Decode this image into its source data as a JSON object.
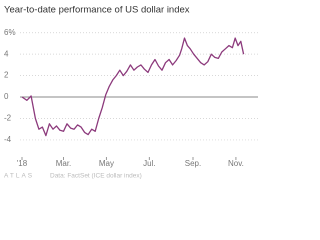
{
  "chart_data": {
    "type": "line",
    "title": "Year-to-date performance of US dollar index",
    "source": "Data: FactSet (ICE dollar index)",
    "brand": "ATLAS",
    "x": [
      1,
      8,
      14,
      20,
      25,
      30,
      35,
      40,
      45,
      50,
      55,
      60,
      65,
      70,
      75,
      80,
      85,
      90,
      95,
      100,
      105,
      110,
      115,
      120,
      125,
      130,
      135,
      140,
      145,
      150,
      155,
      160,
      165,
      170,
      175,
      180,
      185,
      190,
      195,
      200,
      205,
      210,
      215,
      220,
      225,
      228,
      232,
      236,
      240,
      245,
      250,
      255,
      260,
      265,
      270,
      275,
      280,
      285,
      290,
      295,
      300,
      304,
      308,
      312,
      316
    ],
    "series": [
      {
        "name": "US dollar index",
        "color": "#8c3a7c",
        "values": [
          0,
          -0.3,
          0.1,
          -2,
          -3,
          -2.8,
          -3.6,
          -2.5,
          -3,
          -2.7,
          -3.1,
          -3.2,
          -2.5,
          -2.9,
          -3,
          -2.6,
          -2.8,
          -3.3,
          -3.5,
          -3,
          -3.2,
          -2,
          -1,
          0.2,
          1,
          1.6,
          2,
          2.5,
          2,
          2.4,
          3,
          2.5,
          2.8,
          3,
          2.6,
          2.3,
          3,
          3.5,
          2.9,
          2.5,
          3.2,
          3.5,
          3,
          3.4,
          3.9,
          4.5,
          5.5,
          4.8,
          4.5,
          4,
          3.6,
          3.2,
          3,
          3.3,
          4,
          3.7,
          3.6,
          4.2,
          4.5,
          4.8,
          4.6,
          5.5,
          4.8,
          5.2,
          4
        ]
      }
    ],
    "xlim": [
      1,
      330
    ],
    "xticks": [
      {
        "value": 1,
        "label": "'18"
      },
      {
        "value": 60,
        "label": "Mar."
      },
      {
        "value": 121,
        "label": "May"
      },
      {
        "value": 182,
        "label": "Jul."
      },
      {
        "value": 244,
        "label": "Sep."
      },
      {
        "value": 305,
        "label": "Nov."
      }
    ],
    "ylim": [
      -5.5,
      7
    ],
    "yticks": [
      {
        "value": 6,
        "label": "6%"
      },
      4,
      2,
      0,
      -2,
      -4
    ],
    "grid": true
  }
}
